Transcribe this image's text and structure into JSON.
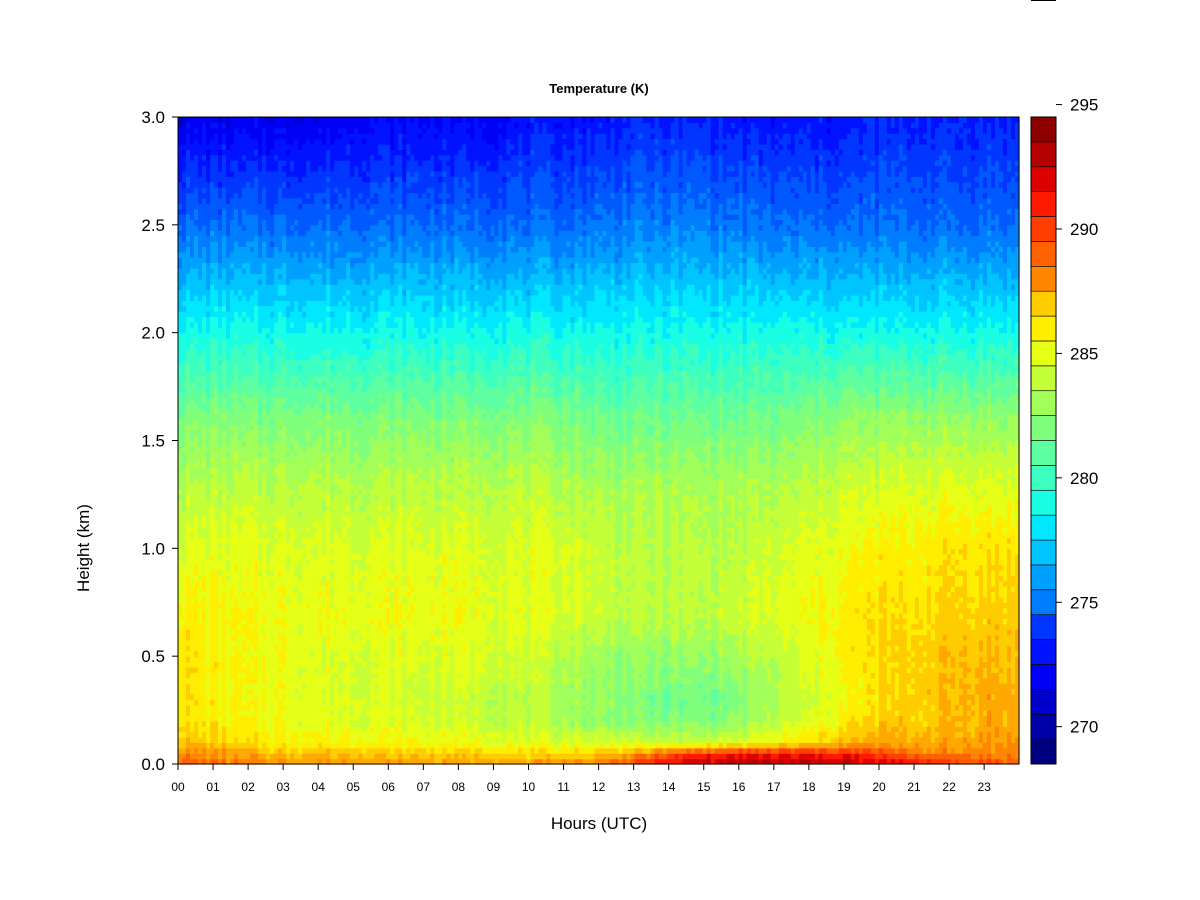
{
  "chart_data": {
    "type": "heatmap",
    "title": "Temperature (K)",
    "xlabel": "Hours (UTC)",
    "ylabel": "Height (km)",
    "xlim": [
      0,
      24
    ],
    "ylim": [
      0,
      3.0
    ],
    "x_tick_labels": [
      "00",
      "01",
      "02",
      "03",
      "04",
      "05",
      "06",
      "07",
      "08",
      "09",
      "10",
      "11",
      "12",
      "13",
      "14",
      "15",
      "16",
      "17",
      "18",
      "19",
      "20",
      "21",
      "22",
      "23"
    ],
    "y_tick_labels": [
      "0.0",
      "0.5",
      "1.0",
      "1.5",
      "2.0",
      "2.5",
      "3.0"
    ],
    "y_ticks": [
      0.0,
      0.5,
      1.0,
      1.5,
      2.0,
      2.5,
      3.0
    ],
    "colorbar": {
      "min": 269,
      "max": 295,
      "step": 1,
      "tick_values": [
        270,
        275,
        280,
        285,
        290,
        295
      ],
      "tick_labels": [
        "270",
        "275",
        "280",
        "285",
        "290",
        "295"
      ]
    },
    "colors": [
      "#00007f",
      "#0000a8",
      "#0000cc",
      "#0000f4",
      "#0012ff",
      "#0036ff",
      "#0058ff",
      "#007cff",
      "#00a0ff",
      "#00c4ff",
      "#00e8ff",
      "#1affe4",
      "#3dffc0",
      "#5effa0",
      "#80ff7c",
      "#a2ff5a",
      "#c4ff37",
      "#e6ff16",
      "#ffee00",
      "#ffcc00",
      "#ffa800",
      "#ff8600",
      "#ff6200",
      "#ff3e00",
      "#fe1a00",
      "#dc0000",
      "#b40000",
      "#8c0000"
    ],
    "hours": [
      0,
      1,
      2,
      3,
      4,
      5,
      6,
      7,
      8,
      9,
      10,
      11,
      12,
      13,
      14,
      15,
      16,
      17,
      18,
      19,
      20,
      21,
      22,
      23,
      24
    ],
    "heights": [
      0.0,
      0.05,
      0.1,
      0.2,
      0.3,
      0.5,
      0.7,
      1.0,
      1.3,
      1.6,
      2.0,
      2.5,
      3.0
    ],
    "temperature": [
      [
        290.0,
        289.5,
        289.0,
        288.8,
        288.5,
        288.5,
        288.5,
        288.5,
        288.5,
        288.5,
        288.5,
        288.8,
        289.5,
        291.0,
        292.5,
        293.0,
        293.5,
        293.5,
        293.5,
        293.5,
        293.0,
        292.5,
        291.0,
        290.5,
        290.0
      ],
      [
        289.0,
        288.5,
        288.0,
        287.5,
        287.5,
        287.5,
        287.0,
        287.0,
        287.0,
        287.0,
        286.5,
        286.5,
        287.0,
        288.0,
        290.0,
        291.5,
        292.0,
        292.0,
        292.0,
        291.5,
        290.5,
        289.5,
        289.0,
        289.0,
        289.0
      ],
      [
        287.5,
        287.0,
        286.5,
        286.0,
        286.0,
        286.0,
        285.8,
        285.5,
        285.5,
        285.5,
        285.0,
        285.0,
        285.0,
        285.0,
        284.5,
        284.5,
        285.0,
        285.5,
        286.5,
        287.5,
        288.0,
        288.0,
        288.0,
        288.5,
        288.5
      ],
      [
        286.5,
        286.0,
        285.5,
        285.5,
        285.2,
        285.0,
        285.0,
        284.8,
        284.5,
        284.5,
        284.0,
        283.5,
        283.0,
        282.5,
        282.5,
        282.5,
        283.0,
        284.0,
        285.0,
        286.0,
        287.0,
        287.0,
        287.5,
        288.0,
        288.0
      ],
      [
        286.5,
        286.0,
        285.5,
        285.5,
        285.0,
        285.0,
        284.8,
        284.5,
        284.5,
        284.2,
        284.0,
        283.5,
        283.0,
        282.5,
        282.0,
        282.0,
        282.5,
        283.5,
        284.5,
        285.5,
        286.5,
        287.0,
        287.5,
        288.0,
        288.0
      ],
      [
        286.5,
        286.0,
        285.5,
        285.5,
        285.0,
        285.0,
        285.0,
        285.0,
        285.0,
        285.0,
        284.5,
        284.0,
        283.5,
        283.0,
        283.0,
        283.0,
        283.5,
        284.0,
        285.0,
        286.0,
        286.5,
        287.0,
        287.5,
        287.5,
        287.5
      ],
      [
        286.0,
        286.0,
        285.5,
        285.5,
        285.5,
        285.5,
        285.5,
        285.5,
        285.5,
        285.2,
        285.0,
        285.0,
        284.5,
        284.0,
        284.0,
        284.0,
        284.5,
        285.0,
        285.5,
        286.0,
        286.5,
        286.5,
        287.0,
        287.0,
        287.0
      ],
      [
        285.0,
        285.0,
        285.0,
        285.0,
        285.0,
        285.0,
        285.0,
        285.0,
        285.0,
        285.0,
        285.0,
        285.0,
        284.5,
        284.0,
        284.0,
        284.0,
        284.0,
        284.5,
        285.0,
        285.5,
        286.0,
        286.0,
        286.5,
        286.5,
        286.5
      ],
      [
        284.0,
        284.0,
        284.0,
        284.0,
        284.0,
        284.0,
        284.0,
        284.0,
        284.0,
        284.0,
        284.0,
        283.8,
        283.5,
        283.5,
        283.5,
        283.5,
        283.5,
        283.5,
        284.0,
        284.5,
        284.5,
        285.0,
        285.0,
        285.0,
        285.0
      ],
      [
        282.5,
        282.5,
        282.5,
        282.5,
        282.5,
        282.5,
        282.5,
        282.5,
        282.5,
        282.5,
        282.5,
        282.5,
        282.0,
        282.0,
        282.0,
        282.0,
        282.0,
        282.0,
        282.5,
        283.0,
        283.0,
        283.0,
        283.0,
        283.0,
        283.0
      ],
      [
        279.5,
        279.5,
        279.5,
        279.5,
        279.5,
        279.5,
        279.5,
        279.5,
        279.5,
        279.5,
        279.5,
        279.5,
        279.5,
        279.5,
        279.5,
        279.5,
        279.5,
        279.5,
        279.5,
        279.5,
        279.5,
        279.5,
        279.5,
        279.5,
        279.5
      ],
      [
        275.5,
        275.5,
        275.5,
        275.5,
        275.5,
        275.5,
        275.5,
        275.5,
        275.5,
        275.5,
        275.5,
        275.5,
        275.8,
        276.0,
        276.0,
        276.0,
        275.8,
        275.5,
        275.5,
        275.5,
        275.5,
        275.5,
        275.5,
        275.5,
        275.5
      ],
      [
        272.0,
        272.0,
        272.0,
        272.0,
        272.0,
        272.5,
        272.5,
        272.5,
        272.5,
        272.5,
        273.0,
        273.0,
        273.0,
        273.5,
        273.5,
        273.5,
        273.0,
        273.0,
        273.0,
        273.0,
        273.5,
        273.5,
        273.5,
        273.5,
        273.5
      ]
    ]
  }
}
